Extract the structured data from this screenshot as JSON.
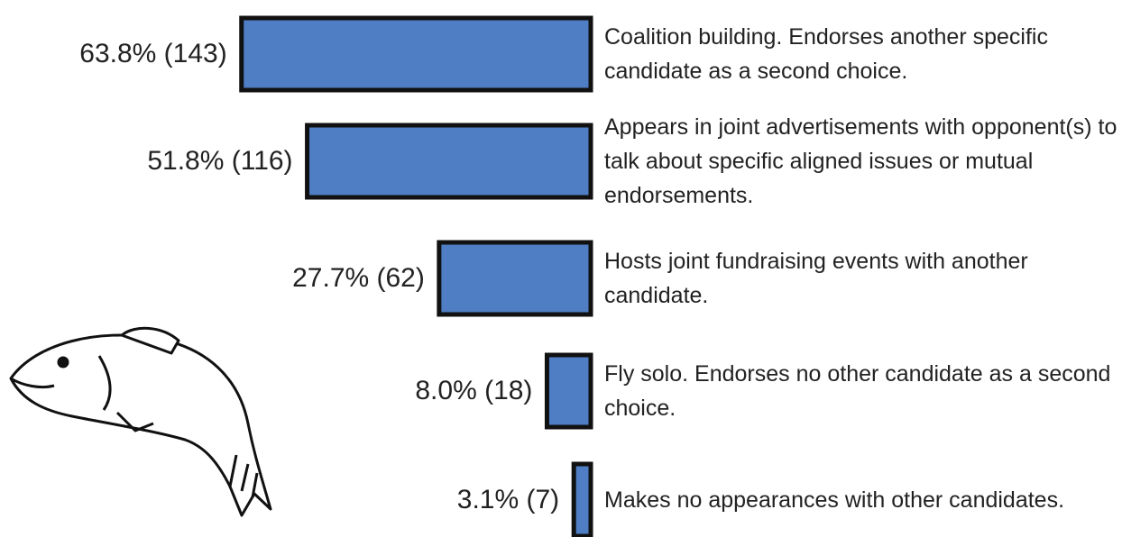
{
  "chart_data": {
    "type": "bar",
    "orientation": "horizontal",
    "categories": [
      "Coalition building. Endorses another specific candidate as a second choice.",
      "Appears in joint advertisements with opponent(s) to talk about specific aligned issues or mutual endorsements.",
      "Hosts joint fundraising events with another candidate.",
      "Fly solo. Endorses no other candidate as a second choice.",
      "Makes no appearances with other candidates."
    ],
    "values": [
      63.8,
      51.8,
      27.7,
      8.0,
      3.1
    ],
    "value_labels": [
      "63.8% (143)",
      "51.8% (116)",
      "27.7% (62)",
      "8.0% (18)",
      "3.1% (7)"
    ],
    "color": "#4f7ec4"
  }
}
